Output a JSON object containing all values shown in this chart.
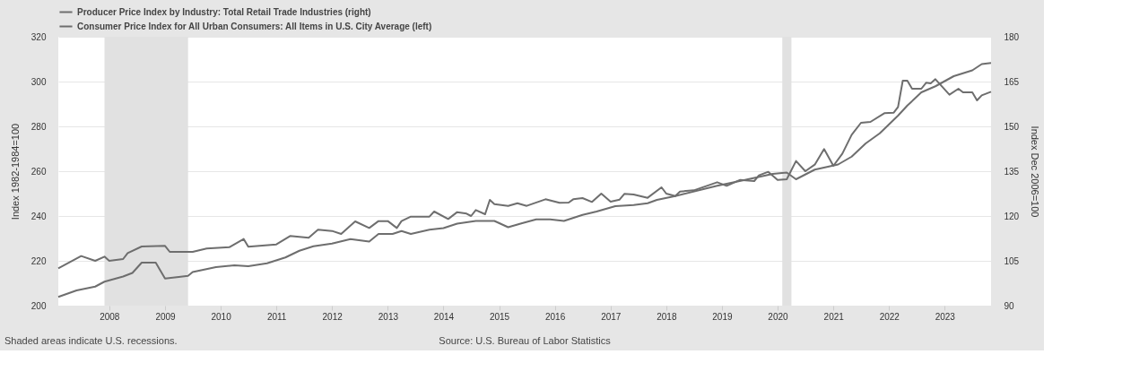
{
  "chart_data": {
    "type": "line",
    "legend": "top left",
    "grid": "y",
    "line_style": "solid",
    "ylabel": "Index 1982-1984=100",
    "y2label": "Index Dec 2006=100",
    "xlim": [
      "2007-02",
      "2023-11"
    ],
    "xticks": [
      "2008",
      "2009",
      "2010",
      "2011",
      "2012",
      "2013",
      "2014",
      "2015",
      "2016",
      "2017",
      "2018",
      "2019",
      "2020",
      "2021",
      "2022",
      "2023"
    ],
    "ylim": [
      200,
      320
    ],
    "yticks": [
      200,
      220,
      240,
      260,
      280,
      300,
      320
    ],
    "y2lim": [
      90,
      180
    ],
    "y2ticks": [
      90,
      105,
      120,
      135,
      150,
      165,
      180
    ],
    "bands": [
      {
        "axis": "x",
        "from": "2007-12",
        "to": "2009-06",
        "color": "#e1e1e1"
      },
      {
        "axis": "x",
        "from": "2020-02",
        "to": "2020-04",
        "color": "#e1e1e1"
      }
    ],
    "annotations": [
      "Shaded areas indicate U.S. recessions.",
      "Source: U.S. Bureau of Labor Statistics"
    ],
    "series": [
      {
        "name": "Producer Price Index by Industry: Total Retail Trade Industries (right)",
        "color": "#6e6e6e",
        "axis": "y2",
        "x": [
          "2007-02",
          "2007-07",
          "2007-10",
          "2007-12",
          "2008-01",
          "2008-04",
          "2008-05",
          "2008-08",
          "2009-01",
          "2009-02",
          "2009-07",
          "2009-10",
          "2010-03",
          "2010-06",
          "2010-07",
          "2011-01",
          "2011-04",
          "2011-08",
          "2011-10",
          "2012-01",
          "2012-03",
          "2012-06",
          "2012-09",
          "2012-11",
          "2013-01",
          "2013-03",
          "2013-04",
          "2013-06",
          "2013-10",
          "2013-11",
          "2014-02",
          "2014-04",
          "2014-06",
          "2014-07",
          "2014-08",
          "2014-10",
          "2014-11",
          "2014-12",
          "2015-03",
          "2015-05",
          "2015-07",
          "2015-11",
          "2016-02",
          "2016-04",
          "2016-05",
          "2016-07",
          "2016-09",
          "2016-11",
          "2017-01",
          "2017-03",
          "2017-04",
          "2017-06",
          "2017-09",
          "2017-12",
          "2018-01",
          "2018-03",
          "2018-04",
          "2018-07",
          "2018-12",
          "2019-02",
          "2019-05",
          "2019-08",
          "2019-09",
          "2019-11",
          "2020-01",
          "2020-03",
          "2020-05",
          "2020-07",
          "2020-09",
          "2020-11",
          "2021-01",
          "2021-03",
          "2021-05",
          "2021-07",
          "2021-09",
          "2021-12",
          "2022-02",
          "2022-03",
          "2022-04",
          "2022-05",
          "2022-06",
          "2022-08",
          "2022-09",
          "2022-10",
          "2022-11",
          "2023-02",
          "2023-04",
          "2023-05",
          "2023-07",
          "2023-08",
          "2023-09",
          "2023-11"
        ],
        "values": [
          102.5,
          106.6,
          105,
          106.4,
          105,
          105.6,
          107.6,
          109.8,
          110,
          108,
          108,
          109.1,
          109.6,
          112.3,
          109.7,
          110.5,
          113.3,
          112.7,
          115.4,
          115,
          114,
          118.2,
          116,
          118.3,
          118.3,
          116,
          118.3,
          119.8,
          119.8,
          121.5,
          119,
          121.3,
          120.8,
          120,
          122,
          120.6,
          125.4,
          124,
          123.4,
          124.3,
          123.4,
          125.6,
          124.4,
          124.5,
          125.6,
          126,
          124.7,
          127.5,
          124.8,
          125.5,
          127.4,
          127.2,
          126.1,
          129.6,
          127.5,
          126.7,
          128.2,
          128.6,
          131.3,
          130.1,
          132.1,
          131.7,
          133.6,
          134.8,
          132.1,
          132.3,
          138.4,
          135,
          137.2,
          142.4,
          136.8,
          140.9,
          147.2,
          151.2,
          151.5,
          154.4,
          154.6,
          156.5,
          165.3,
          165.3,
          162.6,
          162.6,
          164.6,
          164.4,
          165.8,
          160.6,
          162.6,
          161.4,
          161.4,
          158.7,
          160.4,
          161.6
        ]
      },
      {
        "name": "Consumer Price Index for All Urban Consumers: All Items in U.S. City Average (left)",
        "color": "#6e6e6e",
        "axis": "y",
        "x": [
          "2007-02",
          "2007-06",
          "2007-10",
          "2007-12",
          "2008-04",
          "2008-06",
          "2008-08",
          "2008-11",
          "2008-12",
          "2009-01",
          "2009-04",
          "2009-06",
          "2009-07",
          "2009-12",
          "2010-04",
          "2010-07",
          "2010-11",
          "2011-03",
          "2011-06",
          "2011-09",
          "2012-01",
          "2012-05",
          "2012-09",
          "2012-11",
          "2013-02",
          "2013-04",
          "2013-06",
          "2013-10",
          "2014-01",
          "2014-04",
          "2014-08",
          "2014-12",
          "2015-03",
          "2015-06",
          "2015-09",
          "2015-12",
          "2016-03",
          "2016-07",
          "2016-10",
          "2017-02",
          "2017-06",
          "2017-09",
          "2017-11",
          "2018-03",
          "2018-12",
          "2019-06",
          "2019-12",
          "2020-03",
          "2020-05",
          "2020-09",
          "2021-02",
          "2021-05",
          "2021-08",
          "2021-11",
          "2022-03",
          "2022-05",
          "2022-08",
          "2022-11",
          "2023-03",
          "2023-07",
          "2023-09",
          "2023-11"
        ],
        "values": [
          203.9,
          206.8,
          208.5,
          210.7,
          213,
          214.6,
          219.2,
          219.2,
          215.7,
          212.1,
          212.8,
          213.3,
          215,
          217.2,
          218,
          217.6,
          218.9,
          221.5,
          224.5,
          226.5,
          227.7,
          229.7,
          228.6,
          232,
          232,
          233.3,
          232,
          233.9,
          234.6,
          236.6,
          237.8,
          237.8,
          235,
          236.8,
          238.5,
          238.5,
          237.8,
          240.5,
          242,
          244.4,
          244.9,
          245.7,
          247.2,
          248.9,
          253.5,
          256.1,
          258.8,
          259.4,
          256.4,
          260.7,
          263,
          266.5,
          272.4,
          276.9,
          284.8,
          289.3,
          295.2,
          297.9,
          302.4,
          305,
          307.8,
          308.3
        ]
      }
    ]
  }
}
